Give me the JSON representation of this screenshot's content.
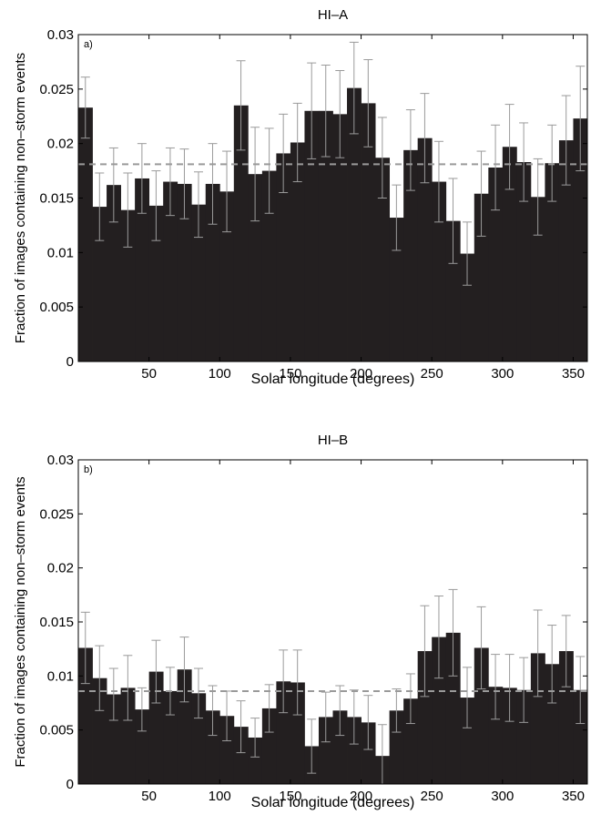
{
  "chart_data": [
    {
      "type": "bar",
      "panel_label": "a)",
      "title": "HI–A",
      "xlabel": "Solar longitude (degrees)",
      "ylabel": "Fraction of images containing non–storm events",
      "xlim": [
        0,
        360
      ],
      "ylim": [
        0,
        0.03
      ],
      "xticks": [
        50,
        100,
        150,
        200,
        250,
        300,
        350
      ],
      "xtick_labels": [
        "50",
        "100",
        "150",
        "200",
        "250",
        "300",
        "350"
      ],
      "yticks": [
        0,
        0.005,
        0.01,
        0.015,
        0.02,
        0.025,
        0.03
      ],
      "ytick_labels": [
        "0",
        "0.005",
        "0.01",
        "0.015",
        "0.02",
        "0.025",
        "0.03"
      ],
      "bin_width": 10,
      "bin_starts": [
        0,
        10,
        20,
        30,
        40,
        50,
        60,
        70,
        80,
        90,
        100,
        110,
        120,
        130,
        140,
        150,
        160,
        170,
        180,
        190,
        200,
        210,
        220,
        230,
        240,
        250,
        260,
        270,
        280,
        290,
        300,
        310,
        320,
        330,
        340,
        350
      ],
      "values": [
        0.0233,
        0.0142,
        0.0162,
        0.0139,
        0.0168,
        0.0143,
        0.0165,
        0.0163,
        0.0144,
        0.0163,
        0.0156,
        0.0235,
        0.0172,
        0.0175,
        0.0191,
        0.0201,
        0.023,
        0.023,
        0.0227,
        0.0251,
        0.0237,
        0.0187,
        0.0132,
        0.0194,
        0.0205,
        0.0165,
        0.0129,
        0.0099,
        0.0154,
        0.0178,
        0.0197,
        0.0183,
        0.0151,
        0.0182,
        0.0203,
        0.0223
      ],
      "error": [
        0.0028,
        0.0031,
        0.0034,
        0.0034,
        0.0032,
        0.0032,
        0.0031,
        0.0032,
        0.003,
        0.0037,
        0.0037,
        0.0041,
        0.0043,
        0.0039,
        0.0036,
        0.0036,
        0.0044,
        0.0042,
        0.004,
        0.0042,
        0.004,
        0.0037,
        0.003,
        0.0037,
        0.0041,
        0.0037,
        0.0039,
        0.0029,
        0.0039,
        0.0039,
        0.0039,
        0.0036,
        0.0035,
        0.0035,
        0.0041,
        0.0048
      ],
      "mean_line": 0.0181,
      "colors": {
        "bar": "#231f20",
        "error_bar": "#9a9a9a",
        "mean_line": "#9a9a9a"
      }
    },
    {
      "type": "bar",
      "panel_label": "b)",
      "title": "HI–B",
      "xlabel": "Solar longitude (degrees)",
      "ylabel": "Fraction of images containing non–storm events",
      "xlim": [
        0,
        360
      ],
      "ylim": [
        0,
        0.03
      ],
      "xticks": [
        50,
        100,
        150,
        200,
        250,
        300,
        350
      ],
      "xtick_labels": [
        "50",
        "100",
        "150",
        "200",
        "250",
        "300",
        "350"
      ],
      "yticks": [
        0,
        0.005,
        0.01,
        0.015,
        0.02,
        0.025,
        0.03
      ],
      "ytick_labels": [
        "0",
        "0.005",
        "0.01",
        "0.015",
        "0.02",
        "0.025",
        "0.03"
      ],
      "bin_width": 10,
      "bin_starts": [
        0,
        10,
        20,
        30,
        40,
        50,
        60,
        70,
        80,
        90,
        100,
        110,
        120,
        130,
        140,
        150,
        160,
        170,
        180,
        190,
        200,
        210,
        220,
        230,
        240,
        250,
        260,
        270,
        280,
        290,
        300,
        310,
        320,
        330,
        340,
        350
      ],
      "values": [
        0.0126,
        0.0098,
        0.0083,
        0.0089,
        0.0069,
        0.0104,
        0.0086,
        0.0106,
        0.0084,
        0.0068,
        0.0063,
        0.0053,
        0.0043,
        0.007,
        0.0095,
        0.0094,
        0.0035,
        0.0062,
        0.0068,
        0.0062,
        0.0057,
        0.0026,
        0.0068,
        0.0079,
        0.0123,
        0.0136,
        0.014,
        0.008,
        0.0126,
        0.009,
        0.0089,
        0.0087,
        0.0121,
        0.0111,
        0.0123,
        0.0087
      ],
      "error": [
        0.0033,
        0.003,
        0.0024,
        0.003,
        0.002,
        0.0029,
        0.0022,
        0.003,
        0.0023,
        0.0023,
        0.0023,
        0.0024,
        0.0018,
        0.0022,
        0.0029,
        0.003,
        0.0025,
        0.0023,
        0.0023,
        0.0025,
        0.0025,
        0.0029,
        0.002,
        0.0023,
        0.0042,
        0.0038,
        0.004,
        0.0028,
        0.0038,
        0.003,
        0.0031,
        0.003,
        0.004,
        0.0036,
        0.0033,
        0.0031
      ],
      "mean_line": 0.0086,
      "colors": {
        "bar": "#231f20",
        "error_bar": "#9a9a9a",
        "mean_line": "#9a9a9a"
      }
    }
  ]
}
